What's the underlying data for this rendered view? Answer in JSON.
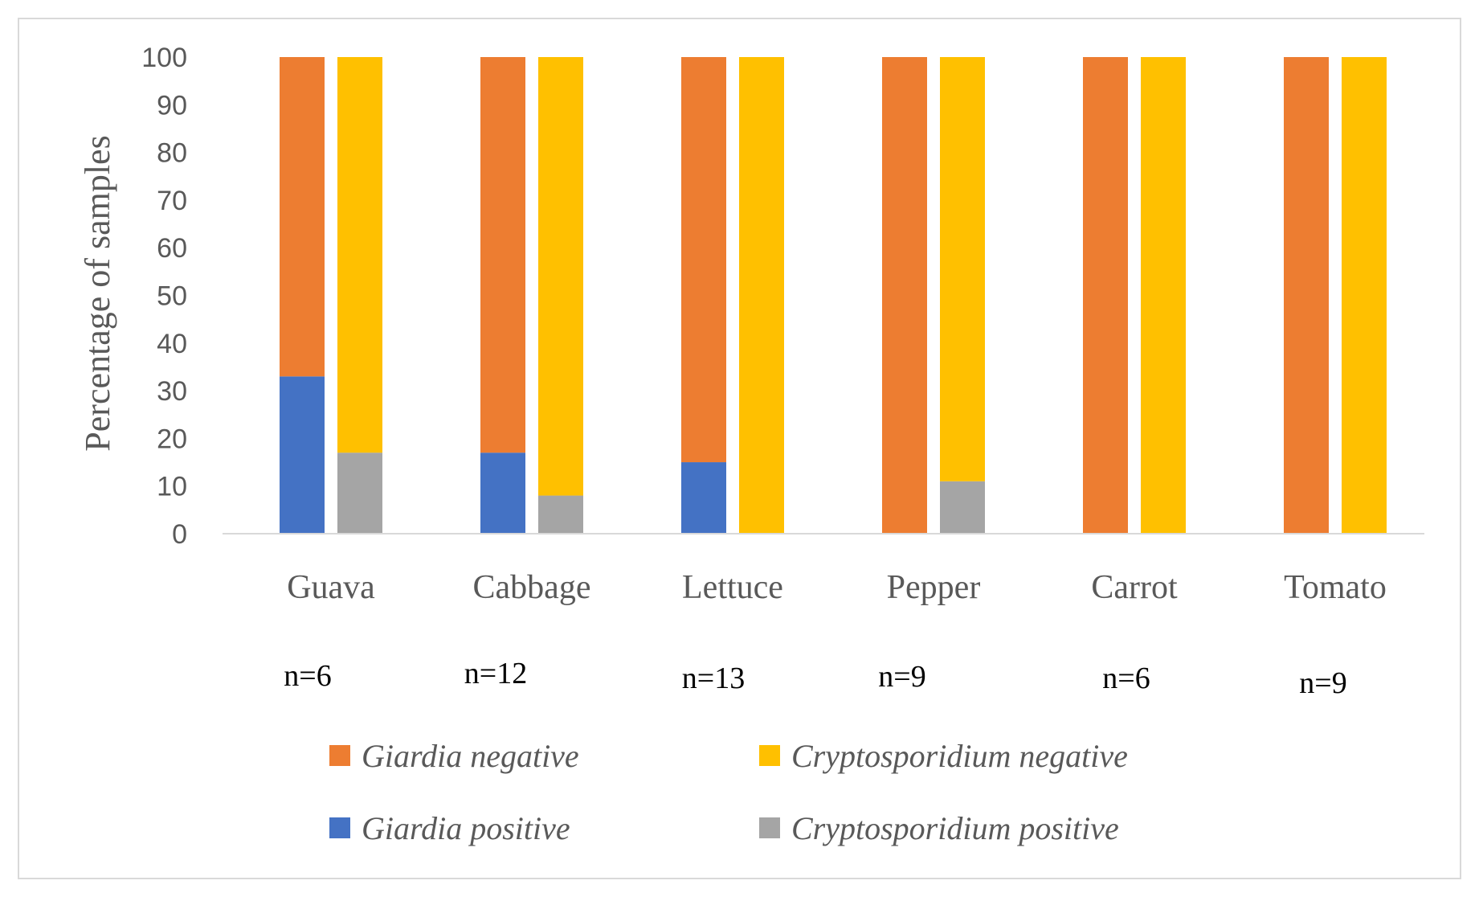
{
  "chart_data": {
    "type": "bar",
    "stacked": true,
    "ylabel": "Percentage of samples",
    "xlabel": "",
    "ylim": [
      0,
      100
    ],
    "yticks": [
      0,
      10,
      20,
      30,
      40,
      50,
      60,
      70,
      80,
      90,
      100
    ],
    "grid": false,
    "legend_position": "bottom",
    "categories": [
      "Guava",
      "Cabbage",
      "Lettuce",
      "Pepper",
      "Carrot",
      "Tomato"
    ],
    "sample_sizes": [
      "n=6",
      "n=12",
      "n=13",
      "n=9",
      "n=6",
      "n=9"
    ],
    "series": [
      {
        "name": "Giardia positive",
        "stack": "Giardia",
        "color": "#4472C4",
        "values": [
          33,
          17,
          15,
          0,
          0,
          0
        ]
      },
      {
        "name": "Giardia negative",
        "stack": "Giardia",
        "color": "#ED7D31",
        "values": [
          67,
          83,
          85,
          100,
          100,
          100
        ]
      },
      {
        "name": "Cryptosporidium positive",
        "stack": "Cryptosporidium",
        "color": "#A5A5A5",
        "values": [
          17,
          8,
          0,
          11,
          0,
          0
        ]
      },
      {
        "name": "Cryptosporidium negative",
        "stack": "Cryptosporidium",
        "color": "#FFC000",
        "values": [
          83,
          92,
          100,
          89,
          100,
          100
        ]
      }
    ],
    "legend": [
      {
        "label": "Giardia negative",
        "color": "#ED7D31"
      },
      {
        "label": "Cryptosporidium negative",
        "color": "#FFC000"
      },
      {
        "label": "Giardia positive",
        "color": "#4472C4"
      },
      {
        "label": "Cryptosporidium positive",
        "color": "#A5A5A5"
      }
    ]
  }
}
